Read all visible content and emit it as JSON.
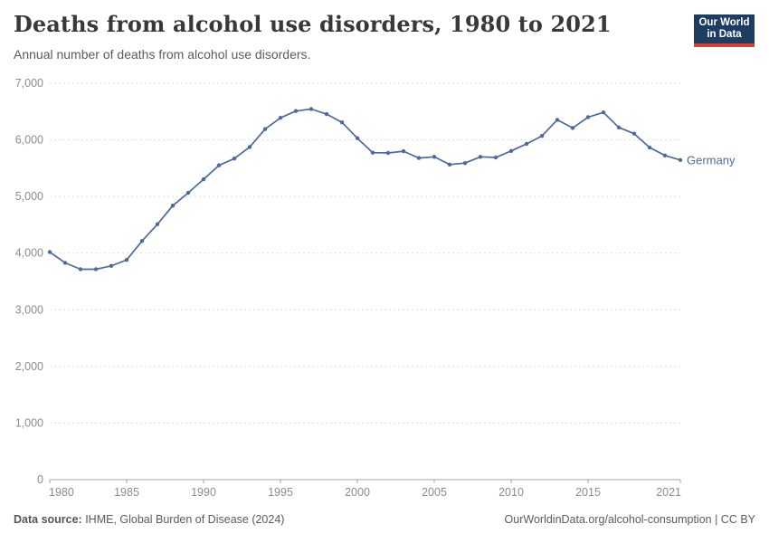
{
  "header": {
    "title": "Deaths from alcohol use disorders, 1980 to 2021",
    "subtitle": "Annual number of deaths from alcohol use disorders.",
    "logo": {
      "line1": "Our World",
      "line2": "in Data",
      "bg_color": "#1d3d63",
      "stripe_color": "#dc3e32"
    }
  },
  "chart_data": {
    "type": "line",
    "title": "Deaths from alcohol use disorders, 1980 to 2021",
    "xlabel": "",
    "ylabel": "",
    "xlim": [
      1980,
      2021
    ],
    "ylim": [
      0,
      7000
    ],
    "grid": "horizontal-dashed",
    "legend_position": "end-of-line",
    "x_ticks": [
      1980,
      1985,
      1990,
      1995,
      2000,
      2005,
      2010,
      2015,
      2021
    ],
    "y_ticks": [
      0,
      1000,
      2000,
      3000,
      4000,
      5000,
      6000,
      7000
    ],
    "series": [
      {
        "name": "Germany",
        "color": "#4c6a9c",
        "x": [
          1980,
          1981,
          1982,
          1983,
          1984,
          1985,
          1986,
          1987,
          1988,
          1989,
          1990,
          1991,
          1992,
          1993,
          1994,
          1995,
          1996,
          1997,
          1998,
          1999,
          2000,
          2001,
          2002,
          2003,
          2004,
          2005,
          2006,
          2007,
          2008,
          2009,
          2010,
          2011,
          2012,
          2013,
          2014,
          2015,
          2016,
          2017,
          2018,
          2019,
          2020,
          2021
        ],
        "values": [
          4020,
          3830,
          3715,
          3715,
          3775,
          3880,
          4215,
          4510,
          4840,
          5065,
          5305,
          5550,
          5670,
          5875,
          6190,
          6390,
          6510,
          6545,
          6455,
          6310,
          6030,
          5775,
          5770,
          5800,
          5680,
          5700,
          5565,
          5590,
          5700,
          5690,
          5805,
          5930,
          6070,
          6355,
          6210,
          6400,
          6485,
          6220,
          6110,
          5865,
          5725,
          5645
        ]
      }
    ]
  },
  "footer": {
    "datasource_label": "Data source:",
    "datasource_value": " IHME, Global Burden of Disease (2024)",
    "link": "OurWorldinData.org/alcohol-consumption | CC BY"
  },
  "colors": {
    "line": "#4c6a9c",
    "gridline": "#dddddd",
    "axis": "#a5a5a5",
    "tick_label": "#8c8c8c",
    "title": "#383838",
    "subtitle": "#5b5b5b"
  }
}
